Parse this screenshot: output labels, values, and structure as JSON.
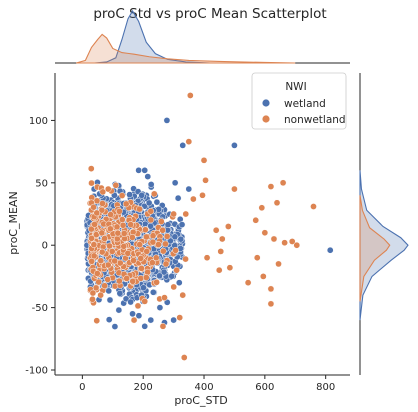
{
  "chart_data": {
    "type": "scatter",
    "title": "proC Std vs proC Mean Scatterplot",
    "xlabel": "proC_STD",
    "ylabel": "proC_MEAN",
    "xlim": [
      -90,
      880
    ],
    "ylim": [
      -104,
      138
    ],
    "xticks": [
      0,
      200,
      400,
      600,
      800
    ],
    "yticks": [
      -100,
      -50,
      0,
      50,
      100
    ],
    "grid": false,
    "legend": {
      "title": "NWI",
      "placement": "top-right",
      "entries": [
        "wetland",
        "nonwetland"
      ]
    },
    "marginals": {
      "type": "kde",
      "x": {
        "wetland": [
          [
            40,
            0.0
          ],
          [
            80,
            0.02
          ],
          [
            110,
            0.1
          ],
          [
            130,
            0.45
          ],
          [
            150,
            0.85
          ],
          [
            165,
            1.0
          ],
          [
            185,
            0.8
          ],
          [
            210,
            0.4
          ],
          [
            240,
            0.18
          ],
          [
            280,
            0.07
          ],
          [
            340,
            0.02
          ],
          [
            420,
            0.0
          ]
        ],
        "nonwetland": [
          [
            -20,
            0.0
          ],
          [
            10,
            0.05
          ],
          [
            30,
            0.3
          ],
          [
            50,
            0.45
          ],
          [
            65,
            0.55
          ],
          [
            80,
            0.48
          ],
          [
            100,
            0.28
          ],
          [
            130,
            0.2
          ],
          [
            170,
            0.17
          ],
          [
            220,
            0.12
          ],
          [
            280,
            0.08
          ],
          [
            350,
            0.05
          ],
          [
            450,
            0.03
          ],
          [
            600,
            0.01
          ],
          [
            700,
            0.0
          ]
        ]
      },
      "y": {
        "wetland": [
          [
            -60,
            0.0
          ],
          [
            -40,
            0.06
          ],
          [
            -25,
            0.25
          ],
          [
            -12,
            0.65
          ],
          [
            -4,
            0.92
          ],
          [
            0,
            1.0
          ],
          [
            6,
            0.85
          ],
          [
            15,
            0.48
          ],
          [
            28,
            0.14
          ],
          [
            45,
            0.03
          ],
          [
            60,
            0.0
          ]
        ],
        "nonwetland": [
          [
            -45,
            0.0
          ],
          [
            -25,
            0.08
          ],
          [
            -12,
            0.3
          ],
          [
            -4,
            0.55
          ],
          [
            0,
            0.62
          ],
          [
            5,
            0.5
          ],
          [
            14,
            0.2
          ],
          [
            28,
            0.05
          ],
          [
            40,
            0.0
          ]
        ]
      }
    },
    "series": [
      {
        "name": "wetland",
        "color": "#4c72b0",
        "cloud": {
          "x_min": 15,
          "x_max": 330,
          "center_x": 150,
          "center_y": 2,
          "sd_y": 17,
          "n": 2200
        },
        "points": [
          [
            185,
            60
          ],
          [
            205,
            60
          ],
          [
            215,
            55
          ],
          [
            195,
            40
          ],
          [
            240,
            40
          ],
          [
            278,
            100
          ],
          [
            330,
            80
          ],
          [
            350,
            45
          ],
          [
            305,
            50
          ],
          [
            500,
            80
          ],
          [
            815,
            -4
          ],
          [
            205,
            -65
          ],
          [
            225,
            -60
          ],
          [
            270,
            -62
          ],
          [
            300,
            -60
          ],
          [
            165,
            -55
          ],
          [
            120,
            -52
          ],
          [
            255,
            -50
          ],
          [
            70,
            -32
          ],
          [
            40,
            -25
          ],
          [
            30,
            -12
          ],
          [
            25,
            18
          ],
          [
            15,
            0
          ]
        ]
      },
      {
        "name": "nonwetland",
        "color": "#dd8452",
        "cloud": {
          "x_min": 25,
          "x_max": 360,
          "center_x": 110,
          "center_y": 0,
          "sd_y": 20,
          "n": 340
        },
        "points": [
          [
            355,
            120
          ],
          [
            350,
            83
          ],
          [
            400,
            68
          ],
          [
            405,
            52
          ],
          [
            500,
            45
          ],
          [
            620,
            47
          ],
          [
            660,
            50
          ],
          [
            640,
            34
          ],
          [
            590,
            30
          ],
          [
            760,
            31
          ],
          [
            665,
            2
          ],
          [
            690,
            3
          ],
          [
            705,
            0
          ],
          [
            630,
            5
          ],
          [
            600,
            10
          ],
          [
            570,
            20
          ],
          [
            575,
            -10
          ],
          [
            595,
            -25
          ],
          [
            620,
            -35
          ],
          [
            645,
            -15
          ],
          [
            620,
            -47
          ],
          [
            545,
            -30
          ],
          [
            485,
            -18
          ],
          [
            450,
            -20
          ],
          [
            410,
            -10
          ],
          [
            455,
            -5
          ],
          [
            330,
            -40
          ],
          [
            320,
            -58
          ],
          [
            265,
            -65
          ],
          [
            270,
            -42
          ],
          [
            205,
            -45
          ],
          [
            60,
            -40
          ],
          [
            335,
            -90
          ],
          [
            440,
            12
          ],
          [
            460,
            5
          ],
          [
            480,
            15
          ],
          [
            395,
            40
          ],
          [
            365,
            37
          ],
          [
            85,
            45
          ],
          [
            110,
            48
          ],
          [
            340,
            25
          ],
          [
            300,
            25
          ],
          [
            310,
            -20
          ],
          [
            170,
            -60
          ]
        ]
      }
    ]
  }
}
